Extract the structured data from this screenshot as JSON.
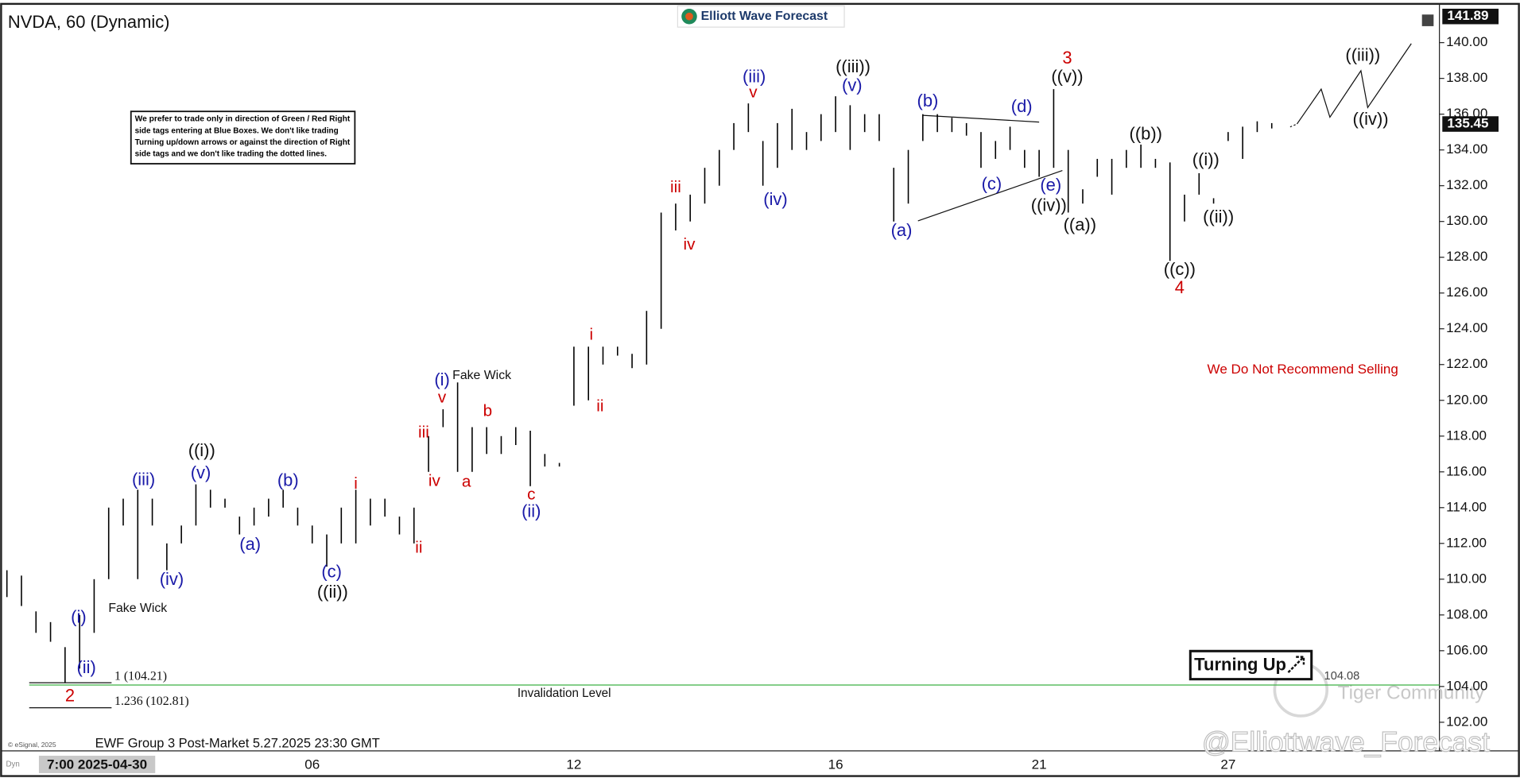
{
  "chart_data": {
    "type": "ohlc",
    "title": "NVDA, 60 (Dynamic)",
    "brand": "Elliott Wave Forecast",
    "note": [
      "We prefer to trade only in direction of Green / Red Right",
      "side tags entering at Blue Boxes. We don't like trading",
      "Turning up/down arrows or against the direction of Right",
      "side tags and we don't like trading the dotted lines."
    ],
    "source": "© eSignal, 2025",
    "mode": "Dyn",
    "footer": "EWF Group 3 Post-Market 5.27.2025 23:30 GMT",
    "categories": [
      null,
      null,
      null,
      null,
      null,
      null,
      "7:00 2025-04-30",
      null,
      null,
      null,
      null,
      null,
      null,
      null,
      null,
      null,
      null,
      null,
      null,
      null,
      null,
      "06",
      null,
      null,
      null,
      null,
      null,
      null,
      null,
      null,
      null,
      null,
      null,
      null,
      null,
      null,
      null,
      null,
      null,
      "12",
      null,
      null,
      null,
      null,
      null,
      null,
      null,
      null,
      null,
      null,
      null,
      null,
      null,
      null,
      null,
      null,
      null,
      "16",
      null,
      null,
      null,
      null,
      null,
      null,
      null,
      null,
      null,
      null,
      null,
      null,
      null,
      "21",
      null,
      null,
      null,
      null,
      null,
      null,
      null,
      null,
      null,
      null,
      null,
      null,
      "27",
      null,
      null,
      null
    ],
    "high": [
      110.5,
      110.2,
      108.2,
      107.6,
      106.2,
      108.0,
      110.0,
      114.0,
      114.5,
      115.0,
      114.5,
      112.0,
      113.0,
      115.3,
      115.0,
      114.5,
      113.5,
      114.0,
      114.5,
      115.0,
      114.0,
      113.0,
      112.5,
      114.0,
      115.0,
      114.5,
      114.5,
      113.5,
      114.0,
      118.0,
      119.5,
      121.0,
      118.5,
      118.5,
      118.0,
      118.5,
      118.3,
      117.0,
      116.5,
      123.0,
      123.0,
      123.0,
      123.0,
      122.6,
      125.0,
      130.5,
      131.0,
      131.5,
      133.0,
      134.0,
      135.5,
      136.6,
      134.5,
      135.5,
      136.3,
      135.0,
      136.0,
      137.0,
      136.5,
      136.0,
      136.0,
      133.0,
      134.0,
      136.0,
      136.0,
      135.8,
      135.5,
      135.0,
      134.5,
      135.3,
      134.0,
      134.0,
      137.4,
      134.0,
      131.8,
      133.5,
      133.5,
      134.0,
      134.3,
      133.5,
      133.3,
      131.5,
      132.7,
      131.3,
      135.0,
      135.3,
      135.6,
      135.5
    ],
    "low": [
      109.0,
      108.5,
      107.0,
      106.5,
      104.2,
      105.0,
      107.0,
      110.0,
      113.0,
      110.0,
      113.0,
      110.5,
      112.0,
      113.0,
      114.0,
      114.0,
      112.5,
      113.0,
      113.5,
      114.0,
      113.0,
      112.0,
      110.7,
      112.0,
      112.0,
      113.0,
      113.5,
      112.5,
      112.0,
      116.0,
      118.5,
      116.0,
      116.0,
      117.0,
      117.0,
      117.5,
      115.2,
      116.3,
      116.3,
      119.7,
      120.0,
      122.0,
      122.5,
      121.8,
      122.0,
      124.0,
      129.5,
      130.0,
      131.0,
      132.0,
      134.0,
      135.0,
      132.0,
      133.0,
      134.0,
      134.0,
      134.5,
      135.0,
      134.0,
      135.0,
      134.5,
      130.0,
      131.0,
      134.5,
      135.0,
      135.0,
      134.8,
      133.0,
      133.5,
      134.0,
      133.0,
      132.5,
      133.0,
      130.5,
      131.0,
      132.5,
      131.5,
      133.0,
      133.0,
      133.0,
      127.8,
      130.0,
      131.5,
      131.0,
      134.5,
      133.5,
      135.0,
      135.2
    ],
    "color": "#000000",
    "ylim": [
      100.4,
      141.95
    ],
    "yticks": [
      {
        "value": 102,
        "label": "102.00"
      },
      {
        "value": 104,
        "label": "104.00"
      },
      {
        "value": 106,
        "label": "106.00"
      },
      {
        "value": 108,
        "label": "108.00"
      },
      {
        "value": 110,
        "label": "110.00"
      },
      {
        "value": 112,
        "label": "112.00"
      },
      {
        "value": 114,
        "label": "114.00"
      },
      {
        "value": 116,
        "label": "116.00"
      },
      {
        "value": 118,
        "label": "118.00"
      },
      {
        "value": 120,
        "label": "120.00"
      },
      {
        "value": 122,
        "label": "122.00"
      },
      {
        "value": 124,
        "label": "124.00"
      },
      {
        "value": 126,
        "label": "126.00"
      },
      {
        "value": 128,
        "label": "128.00"
      },
      {
        "value": 130,
        "label": "130.00"
      },
      {
        "value": 132,
        "label": "132.00"
      },
      {
        "value": 134,
        "label": "134.00"
      },
      {
        "value": 136,
        "label": "136.00"
      },
      {
        "value": 138,
        "label": "138.00"
      },
      {
        "value": 140,
        "label": "140.00"
      }
    ],
    "price_markers": [
      {
        "value": 141.89,
        "label": "141.89"
      },
      {
        "value": 135.45,
        "label": "135.45"
      }
    ],
    "fib_levels": [
      {
        "value": 104.21,
        "label": "1 (104.21)"
      },
      {
        "value": 102.81,
        "label": "1.236 (102.81)"
      }
    ],
    "invalidation": {
      "value": 104.08,
      "label": "104.08",
      "text": "Invalidation Level",
      "color": "#3cb043"
    },
    "annotations": [
      {
        "text": "2",
        "color": "#cc0000"
      },
      {
        "text": "(i)",
        "color": "#1a1aa8"
      },
      {
        "text": "(ii)",
        "color": "#1a1aa8"
      },
      {
        "text": "Fake Wick",
        "color": "#111111"
      },
      {
        "text": "(iii)",
        "color": "#1a1aa8"
      },
      {
        "text": "(iv)",
        "color": "#1a1aa8"
      },
      {
        "text": "(v)",
        "color": "#1a1aa8"
      },
      {
        "text": "((i))",
        "color": "#111111"
      },
      {
        "text": "(a)",
        "color": "#1a1aa8"
      },
      {
        "text": "(b)",
        "color": "#1a1aa8"
      },
      {
        "text": "(c)",
        "color": "#1a1aa8"
      },
      {
        "text": "((ii))",
        "color": "#111111"
      },
      {
        "text": "i",
        "color": "#cc0000"
      },
      {
        "text": "ii",
        "color": "#cc0000"
      },
      {
        "text": "iii",
        "color": "#cc0000"
      },
      {
        "text": "iv",
        "color": "#cc0000"
      },
      {
        "text": "(i)",
        "color": "#1a1aa8"
      },
      {
        "text": "v",
        "color": "#cc0000"
      },
      {
        "text": "Fake Wick",
        "color": "#111111"
      },
      {
        "text": "a",
        "color": "#cc0000"
      },
      {
        "text": "b",
        "color": "#cc0000"
      },
      {
        "text": "c",
        "color": "#cc0000"
      },
      {
        "text": "(ii)",
        "color": "#1a1aa8"
      },
      {
        "text": "i",
        "color": "#cc0000"
      },
      {
        "text": "ii",
        "color": "#cc0000"
      },
      {
        "text": "iii",
        "color": "#cc0000"
      },
      {
        "text": "iv",
        "color": "#cc0000"
      },
      {
        "text": "(iii)",
        "color": "#1a1aa8"
      },
      {
        "text": "v",
        "color": "#cc0000"
      },
      {
        "text": "(iv)",
        "color": "#1a1aa8"
      },
      {
        "text": "((iii))",
        "color": "#111111"
      },
      {
        "text": "(v)",
        "color": "#1a1aa8"
      },
      {
        "text": "(a)",
        "color": "#1a1aa8"
      },
      {
        "text": "(b)",
        "color": "#1a1aa8"
      },
      {
        "text": "(c)",
        "color": "#1a1aa8"
      },
      {
        "text": "(d)",
        "color": "#1a1aa8"
      },
      {
        "text": "(e)",
        "color": "#1a1aa8"
      },
      {
        "text": "((iv))",
        "color": "#111111"
      },
      {
        "text": "3",
        "color": "#cc0000"
      },
      {
        "text": "((v))",
        "color": "#111111"
      },
      {
        "text": "((a))",
        "color": "#111111"
      },
      {
        "text": "((b))",
        "color": "#111111"
      },
      {
        "text": "((c))",
        "color": "#111111"
      },
      {
        "text": "4",
        "color": "#cc0000"
      },
      {
        "text": "((i))",
        "color": "#111111"
      },
      {
        "text": "((ii))",
        "color": "#111111"
      },
      {
        "text": "((iii))",
        "color": "#111111"
      },
      {
        "text": "((iv))",
        "color": "#111111"
      },
      {
        "text": "We Do Not Recommend Selling",
        "color": "#cc0000"
      }
    ],
    "signal": "Turning Up",
    "watermarks": [
      "Tiger Community",
      "@Elliottwave_Forecast"
    ]
  }
}
